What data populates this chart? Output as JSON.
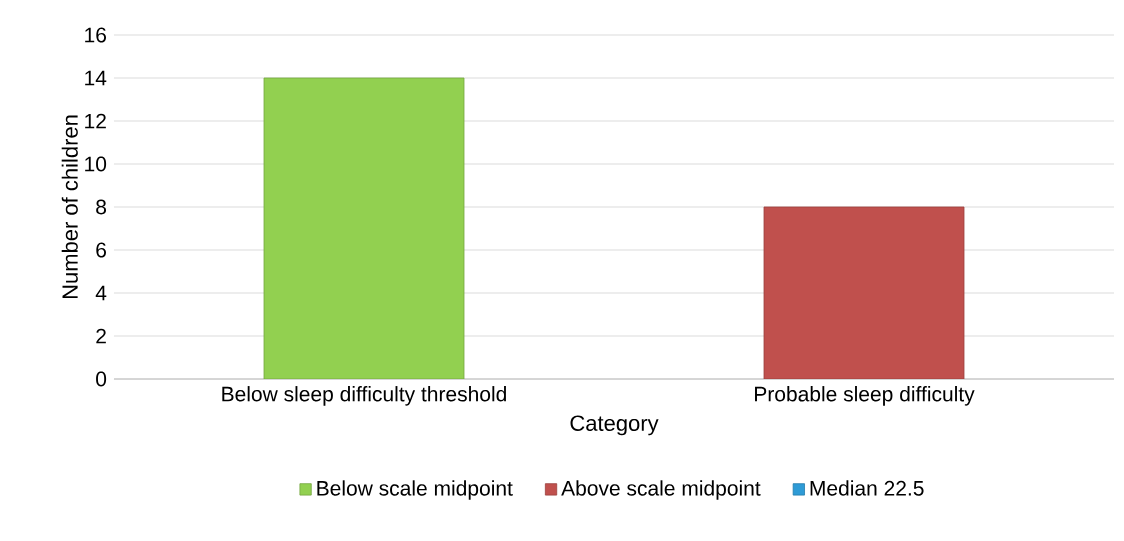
{
  "chart_data": {
    "type": "bar",
    "xlabel": "Category",
    "ylabel": "Number of children",
    "categories": [
      "Below sleep difficulty threshold",
      "Probable sleep difficulty"
    ],
    "series": [
      {
        "name": "Below scale midpoint",
        "color": "#92d050",
        "values": [
          14,
          null
        ]
      },
      {
        "name": "Above scale  midpoint",
        "color": "#c0504d",
        "values": [
          null,
          8
        ]
      },
      {
        "name": "Median 22.5",
        "color": "#2e9bd6",
        "values": [
          null,
          null
        ]
      }
    ],
    "ylim": [
      0,
      16
    ],
    "yticks": [
      0,
      2,
      4,
      6,
      8,
      10,
      12,
      14,
      16
    ],
    "grid": "y",
    "legend": "bottom"
  }
}
